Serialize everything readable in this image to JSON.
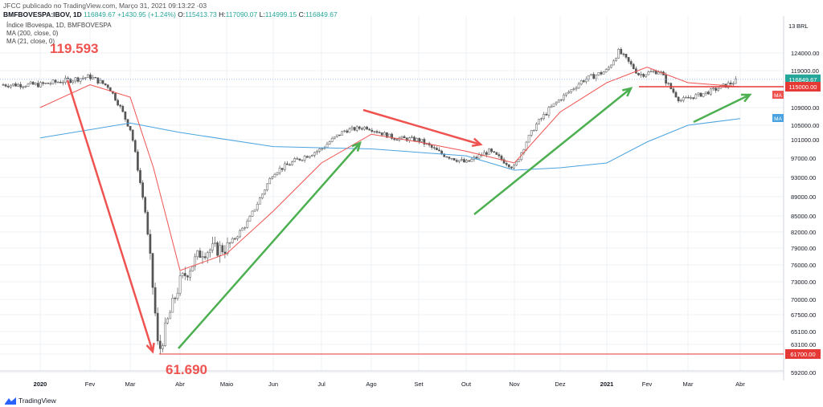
{
  "header": {
    "publisher_line": "JFCC publicado no TradingView.com, Março 31, 2021 09:13:22 -03",
    "symbol": "BMFBOVESPA:IBOV, 1D",
    "last": "116849.67",
    "change": "+1430.95 (+1.24%)",
    "open_label": "O:",
    "open": "115413.73",
    "high_label": "H:",
    "high": "117090.07",
    "low_label": "L:",
    "low": "114999.15",
    "close_label": "C:",
    "close": "116849.67"
  },
  "legend": {
    "title": "Índice IBovespa, 1D, BMFBOVESPA",
    "ma200": "MA (200, close, 0)",
    "ma21": "MA (21, close, 0)"
  },
  "footer": {
    "brand": "TradingView"
  },
  "colors": {
    "up": "#26a69a",
    "down": "#ef5350",
    "candle": "#555555",
    "ma21": "#ef5350",
    "ma200": "#4aa3df",
    "red_line": "#e53935",
    "red_arrow": "#ef5350",
    "green_arrow": "#4caf50"
  },
  "chart_data": {
    "type": "line",
    "title": "Índice IBovespa, 1D, BMFBOVESPA",
    "currency_label": "BRL",
    "y_ticks": [
      59200,
      61700,
      63100,
      65100,
      67500,
      70000,
      73000,
      76000,
      79000,
      82000,
      85000,
      89000,
      93000,
      97000,
      101000,
      105000,
      109000,
      115000,
      119000,
      124000
    ],
    "y_tick_labels": [
      "59200.00",
      "61700.00",
      "63100.00",
      "65100.00",
      "67500.00",
      "70000.00",
      "73000.00",
      "76000.00",
      "79000.00",
      "82000.00",
      "85000.00",
      "89000.00",
      "93000.00",
      "97000.00",
      "101000.00",
      "105000.00",
      "109000.00",
      "115000.00",
      "119000.00",
      "124000.00"
    ],
    "y_top_label": "13",
    "x_ticks": [
      "2020",
      "Fev",
      "Mar",
      "Abr",
      "Maio",
      "Jun",
      "Jul",
      "Ago",
      "Set",
      "Out",
      "Nov",
      "Dez",
      "2021",
      "Fev",
      "Mar",
      "Abr"
    ],
    "ylim": [
      58000,
      131000
    ],
    "series": [
      {
        "name": "BMFBOVESPA:IBOV",
        "type": "candles",
        "x": [
          "2020-01",
          "2020-02-01",
          "2020-02-15",
          "2020-03-01",
          "2020-03-10",
          "2020-03-18",
          "2020-04-01",
          "2020-04-15",
          "2020-05-01",
          "2020-05-15",
          "2020-06-01",
          "2020-06-15",
          "2020-07-01",
          "2020-07-15",
          "2020-07-28",
          "2020-08-15",
          "2020-09-01",
          "2020-09-15",
          "2020-10-01",
          "2020-10-15",
          "2020-11-01",
          "2020-11-15",
          "2020-12-01",
          "2020-12-15",
          "2021-01-01",
          "2021-01-10",
          "2021-01-25",
          "2021-02-10",
          "2021-02-25",
          "2021-03-10",
          "2021-03-31"
        ],
        "y": [
          115500,
          117500,
          115000,
          104000,
          86000,
          61690,
          73000,
          78500,
          79000,
          84000,
          94000,
          96500,
          99000,
          103500,
          104500,
          101500,
          101000,
          98000,
          96000,
          98500,
          95000,
          105000,
          111500,
          116500,
          119000,
          124500,
          118000,
          119000,
          111000,
          113000,
          116849.67
        ]
      },
      {
        "name": "MA (200, close, 0)",
        "x": [
          "2020-01",
          "2020-03",
          "2020-04",
          "2020-06",
          "2020-08",
          "2020-10",
          "2020-11",
          "2020-12",
          "2021-01",
          "2021-02",
          "2021-03",
          "2021-03-31"
        ],
        "y": [
          101500,
          105500,
          103000,
          99500,
          99000,
          97500,
          94500,
          95000,
          96000,
          100500,
          105000,
          106500
        ]
      },
      {
        "name": "MA (21, close, 0)",
        "x": [
          "2020-01",
          "2020-02",
          "2020-03-01",
          "2020-03-15",
          "2020-04-01",
          "2020-05-01",
          "2020-06-01",
          "2020-07-01",
          "2020-08-01",
          "2020-09-01",
          "2020-10-01",
          "2020-11-01",
          "2020-12-01",
          "2021-01-01",
          "2021-02-01",
          "2021-03-01",
          "2021-03-31"
        ],
        "y": [
          109000,
          115500,
          112000,
          95000,
          75000,
          78000,
          86000,
          96000,
          102500,
          100500,
          98500,
          96000,
          108000,
          116000,
          120000,
          116000,
          115000
        ]
      }
    ],
    "horizontal_lines": [
      {
        "value": 115000,
        "label": "115000.00"
      },
      {
        "value": 61700,
        "label": "61700.00"
      }
    ],
    "last_price_label": "116849.67",
    "ma_badges": [
      "MA",
      "MA"
    ],
    "annotations": [
      "119.593",
      "61.690"
    ],
    "grid": true
  }
}
